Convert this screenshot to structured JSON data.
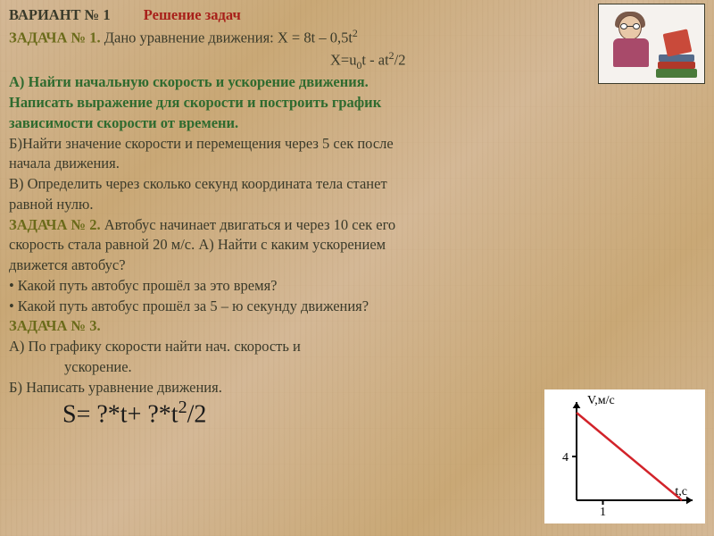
{
  "header": {
    "variant": "ВАРИАНТ  №  1",
    "title": "Решение задач"
  },
  "task1": {
    "label": "ЗАДАЧА  №  1.",
    "given": "  Дано  уравнение  движения: Х = 8t – 0,5t",
    "eq2_prefix": "Х=u",
    "eq2_rest": "t - at",
    "eq2_tail": "/2",
    "a": "    А) Найти  начальную  скорость  и  ускорение  движения.",
    "a2": "Написать  выражение  для  скорости  и  построить  график ",
    "a3": "зависимости  скорости  от  времени.",
    "b": "    Б)Найти  значение  скорости  и  перемещения  через  5 сек  после",
    "b2": "начала движения.",
    "c": "     В) Определить  через  сколько  секунд  координата  тела  станет",
    "c2": "равной  нулю."
  },
  "task2": {
    "label": "ЗАДАЧА  №  2.",
    "l1": "  Автобус  начинает  двигаться  и  через  10  сек  его",
    "l2": "скорость  стала  равной  20  м/с.   А)  Найти  с  каким  ускорением",
    "l3": "движется  автобус?",
    "q1": "Какой  путь  автобус  прошёл  за  это  время?",
    "q2": "Какой  путь  автобус  прошёл  за  5 – ю  секунду  движения?"
  },
  "task3": {
    "label": "ЗАДАЧА  №  3.",
    "a1": " А)    По  графику скорости  найти  нач. скорость  и",
    "a2": "ускорение.",
    "b": " Б)    Написать  уравнение  движения.",
    "formula_pre": "S= ?*t+ ?*t",
    "formula_tail": "/2"
  },
  "chart": {
    "type": "line",
    "ylabel": "V,м/с",
    "xlabel": "t,с",
    "line_color": "#d2232a",
    "axis_color": "#000000",
    "background_color": "#ffffff",
    "xlim": [
      0,
      4
    ],
    "ylim": [
      0,
      8
    ],
    "xtick_labels": [
      "1"
    ],
    "ytick_labels": [
      "4"
    ],
    "points": [
      [
        0,
        8
      ],
      [
        4,
        0
      ]
    ],
    "line_width": 2.5,
    "arrow_size": 7,
    "tick_len": 5,
    "axis_label_fontsize": 14,
    "tick_fontsize": 14
  },
  "colors": {
    "dark": "#3a3a2a",
    "red": "#a8201a",
    "olive": "#6b6b1a",
    "green": "#2f6b2f"
  }
}
